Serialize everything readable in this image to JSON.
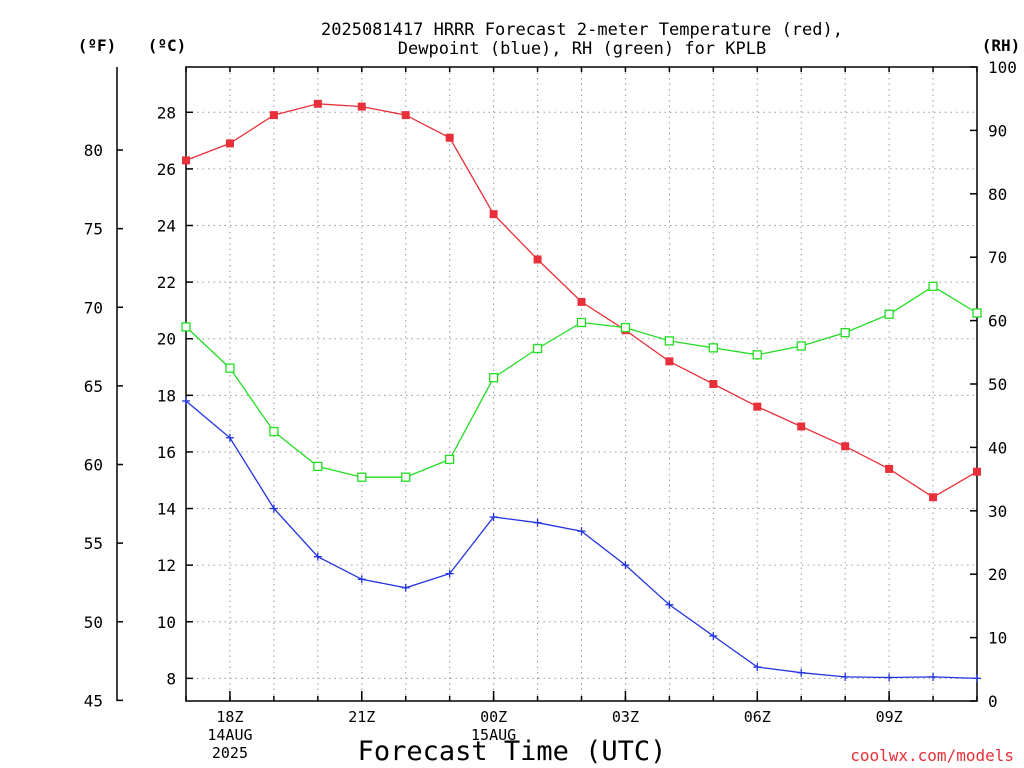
{
  "title": {
    "line1": "2025081417 HRRR Forecast 2-meter Temperature (red),",
    "line2": "Dewpoint (blue), RH (green) for KPLB"
  },
  "units": {
    "fahrenheit": "(ºF)",
    "celsius": "(ºC)",
    "rh": "(RH)"
  },
  "xlabel": "Forecast Time (UTC)",
  "credit": "coolwx.com/models",
  "colors": {
    "temperature": "#e8303a",
    "dewpoint": "#2233e0",
    "rh": "#22dd22"
  },
  "chart_data": {
    "type": "line",
    "x": [
      17,
      18,
      19,
      20,
      21,
      22,
      23,
      24,
      25,
      26,
      27,
      28,
      29,
      30,
      31,
      32,
      33,
      34,
      35
    ],
    "x_ticks": [
      {
        "x": 18,
        "lines": [
          "18Z",
          "14AUG",
          "2025"
        ]
      },
      {
        "x": 21,
        "lines": [
          "21Z"
        ]
      },
      {
        "x": 24,
        "lines": [
          "00Z",
          "15AUG"
        ]
      },
      {
        "x": 27,
        "lines": [
          "03Z"
        ]
      },
      {
        "x": 30,
        "lines": [
          "06Z"
        ]
      },
      {
        "x": 33,
        "lines": [
          "09Z"
        ]
      }
    ],
    "xlim": [
      17,
      35
    ],
    "y_left_c": {
      "ylim": [
        7.2,
        29.6
      ],
      "ticks": [
        8,
        10,
        12,
        14,
        16,
        18,
        20,
        22,
        24,
        26,
        28
      ]
    },
    "y_left_f": {
      "ticks": [
        45,
        50,
        55,
        60,
        65,
        70,
        75,
        80
      ]
    },
    "y_right_rh": {
      "ylim": [
        0,
        100
      ],
      "ticks": [
        0,
        10,
        20,
        30,
        40,
        50,
        60,
        70,
        80,
        90,
        100
      ]
    },
    "grid": true,
    "series": [
      {
        "name": "Temperature",
        "axis": "celsius",
        "marker": "filled-square",
        "values": [
          26.3,
          26.9,
          27.9,
          28.3,
          28.2,
          27.9,
          27.1,
          24.4,
          22.8,
          21.3,
          20.3,
          19.2,
          18.4,
          17.6,
          16.9,
          16.2,
          15.4,
          14.4,
          15.3
        ]
      },
      {
        "name": "Dewpoint",
        "axis": "celsius",
        "marker": "plus",
        "values": [
          17.8,
          16.5,
          14.0,
          12.3,
          11.5,
          11.2,
          11.7,
          13.7,
          13.5,
          13.2,
          12.0,
          10.6,
          9.5,
          8.4,
          8.2,
          8.05,
          8.03,
          8.05,
          8.0
        ]
      },
      {
        "name": "RH",
        "axis": "rh",
        "marker": "open-square",
        "values": [
          59,
          52.5,
          42.5,
          37,
          35.3,
          35.3,
          38.1,
          51,
          55.6,
          59.7,
          58.9,
          56.8,
          55.7,
          54.6,
          56,
          58.1,
          61,
          65.4,
          61.2
        ]
      }
    ]
  }
}
